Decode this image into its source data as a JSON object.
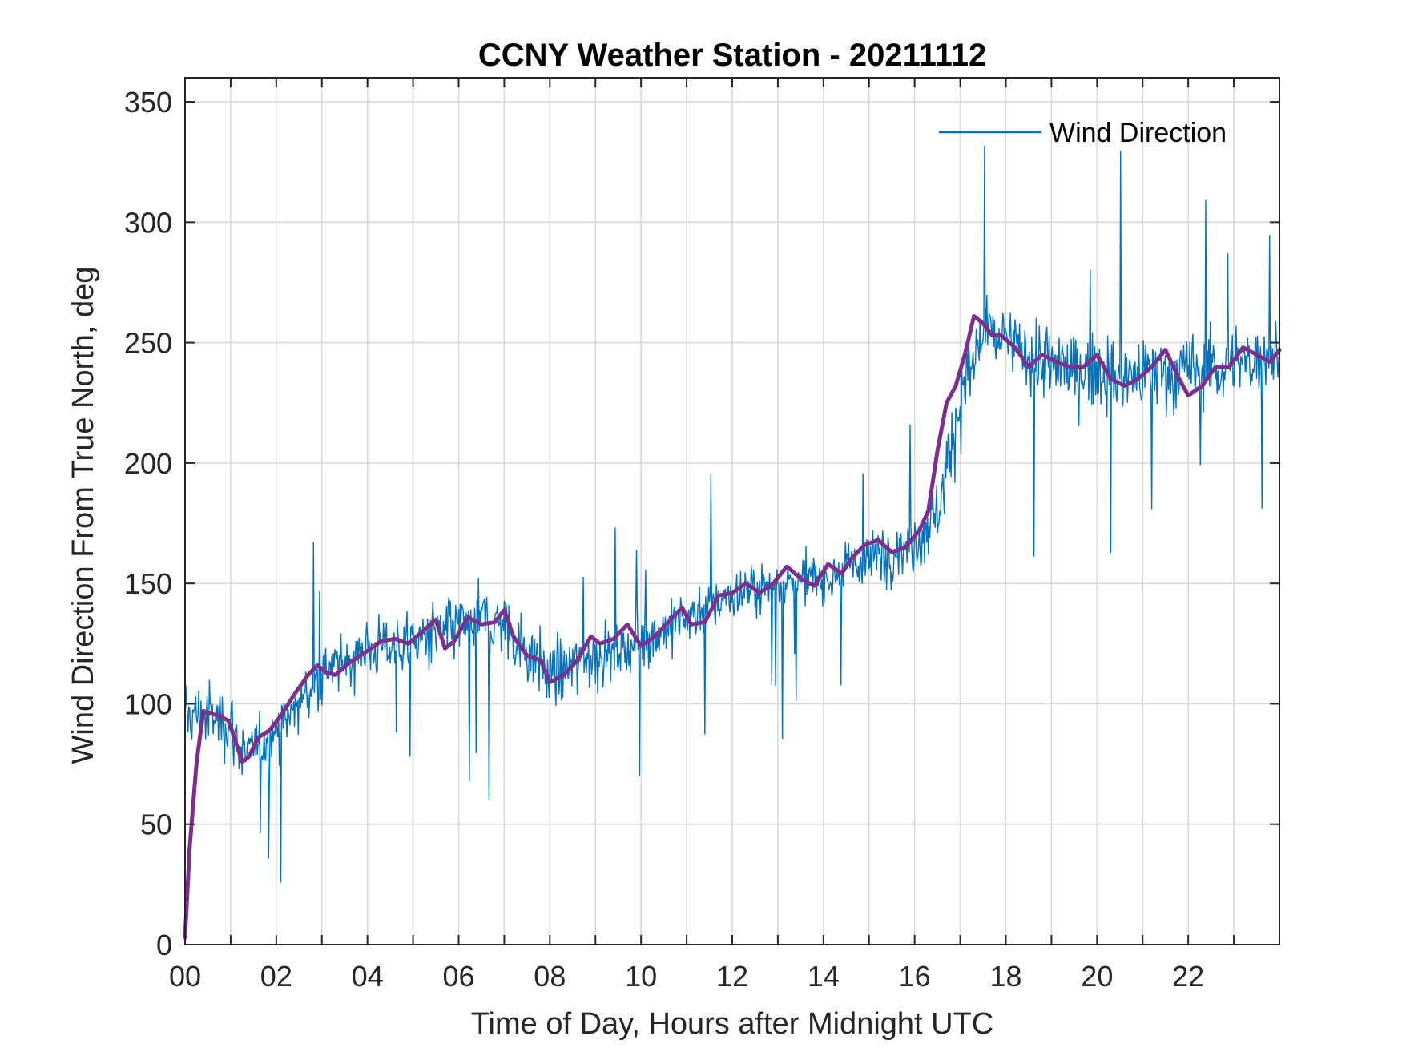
{
  "chart_data": {
    "type": "line",
    "title": "CCNY Weather Station - 20211112",
    "xlabel": "Time of Day, Hours after Midnight UTC",
    "ylabel": "Wind Direction From True North, deg",
    "xlim": [
      0,
      24
    ],
    "ylim": [
      0,
      360
    ],
    "xticks": [
      0,
      2,
      4,
      6,
      8,
      10,
      12,
      14,
      16,
      18,
      20,
      22
    ],
    "xtick_labels": [
      "00",
      "02",
      "04",
      "06",
      "08",
      "10",
      "12",
      "14",
      "16",
      "18",
      "20",
      "22"
    ],
    "yticks": [
      0,
      50,
      100,
      150,
      200,
      250,
      300,
      350
    ],
    "ytick_labels": [
      "0",
      "50",
      "100",
      "150",
      "200",
      "250",
      "300",
      "350"
    ],
    "minor_x_grid_step": 1,
    "grid": true,
    "legend": {
      "position": "top-right",
      "entries": [
        "Wind Direction"
      ]
    },
    "series": [
      {
        "name": "Wind Direction",
        "color": "#0072BD",
        "description": "raw 1-minute samples (noisy)",
        "anchor_x": [
          0,
          0.5,
          1.0,
          1.3,
          2.0,
          3.0,
          4.0,
          5.0,
          5.8,
          6.5,
          7.0,
          8.0,
          9.0,
          10.0,
          11.0,
          12.0,
          13.0,
          14.0,
          15.0,
          16.0,
          16.5,
          17.0,
          17.5,
          18.0,
          19.0,
          20.0,
          21.0,
          22.0,
          23.0,
          24.0
        ],
        "anchor_y": [
          95,
          95,
          92,
          78,
          88,
          112,
          123,
          126,
          130,
          135,
          133,
          112,
          120,
          125,
          136,
          145,
          150,
          152,
          160,
          167,
          180,
          225,
          255,
          250,
          240,
          238,
          236,
          238,
          240,
          247
        ],
        "noise_amplitude": [
          18,
          18,
          18,
          16,
          15,
          14,
          15,
          16,
          17,
          18,
          18,
          18,
          16,
          15,
          14,
          13,
          13,
          14,
          15,
          16,
          20,
          22,
          20,
          20,
          20,
          20,
          20,
          20,
          20,
          20
        ]
      },
      {
        "name": "Running Mean",
        "color": "#7E2F8E",
        "in_legend": false,
        "x": [
          0,
          0.1,
          0.25,
          0.4,
          0.55,
          0.75,
          0.95,
          1.1,
          1.25,
          1.4,
          1.6,
          1.85,
          2.1,
          2.4,
          2.7,
          2.9,
          3.1,
          3.3,
          3.6,
          4.0,
          4.3,
          4.6,
          4.9,
          5.2,
          5.5,
          5.7,
          5.9,
          6.2,
          6.5,
          6.8,
          7.0,
          7.2,
          7.5,
          7.8,
          8.0,
          8.3,
          8.6,
          8.9,
          9.1,
          9.4,
          9.7,
          10.0,
          10.3,
          10.6,
          10.9,
          11.1,
          11.4,
          11.7,
          12.0,
          12.3,
          12.6,
          12.9,
          13.2,
          13.5,
          13.8,
          14.1,
          14.4,
          14.6,
          14.9,
          15.2,
          15.5,
          15.8,
          16.1,
          16.3,
          16.5,
          16.7,
          16.9,
          17.1,
          17.3,
          17.5,
          17.7,
          17.9,
          18.2,
          18.5,
          18.8,
          19.1,
          19.4,
          19.7,
          20.0,
          20.3,
          20.6,
          20.9,
          21.2,
          21.5,
          21.8,
          22.0,
          22.3,
          22.6,
          22.9,
          23.2,
          23.5,
          23.8,
          24.0
        ],
        "y": [
          3,
          40,
          75,
          97,
          96,
          95,
          93,
          85,
          76,
          78,
          86,
          89,
          95,
          104,
          112,
          116,
          113,
          112,
          117,
          122,
          126,
          127,
          125,
          130,
          135,
          123,
          126,
          136,
          133,
          134,
          139,
          128,
          120,
          118,
          109,
          112,
          118,
          128,
          125,
          127,
          133,
          124,
          128,
          134,
          140,
          133,
          134,
          145,
          146,
          150,
          146,
          150,
          157,
          152,
          149,
          158,
          154,
          160,
          166,
          168,
          163,
          165,
          172,
          180,
          205,
          225,
          232,
          245,
          261,
          258,
          253,
          253,
          248,
          240,
          245,
          242,
          240,
          240,
          245,
          235,
          232,
          235,
          240,
          247,
          235,
          228,
          232,
          240,
          240,
          248,
          245,
          242,
          247
        ]
      }
    ]
  }
}
